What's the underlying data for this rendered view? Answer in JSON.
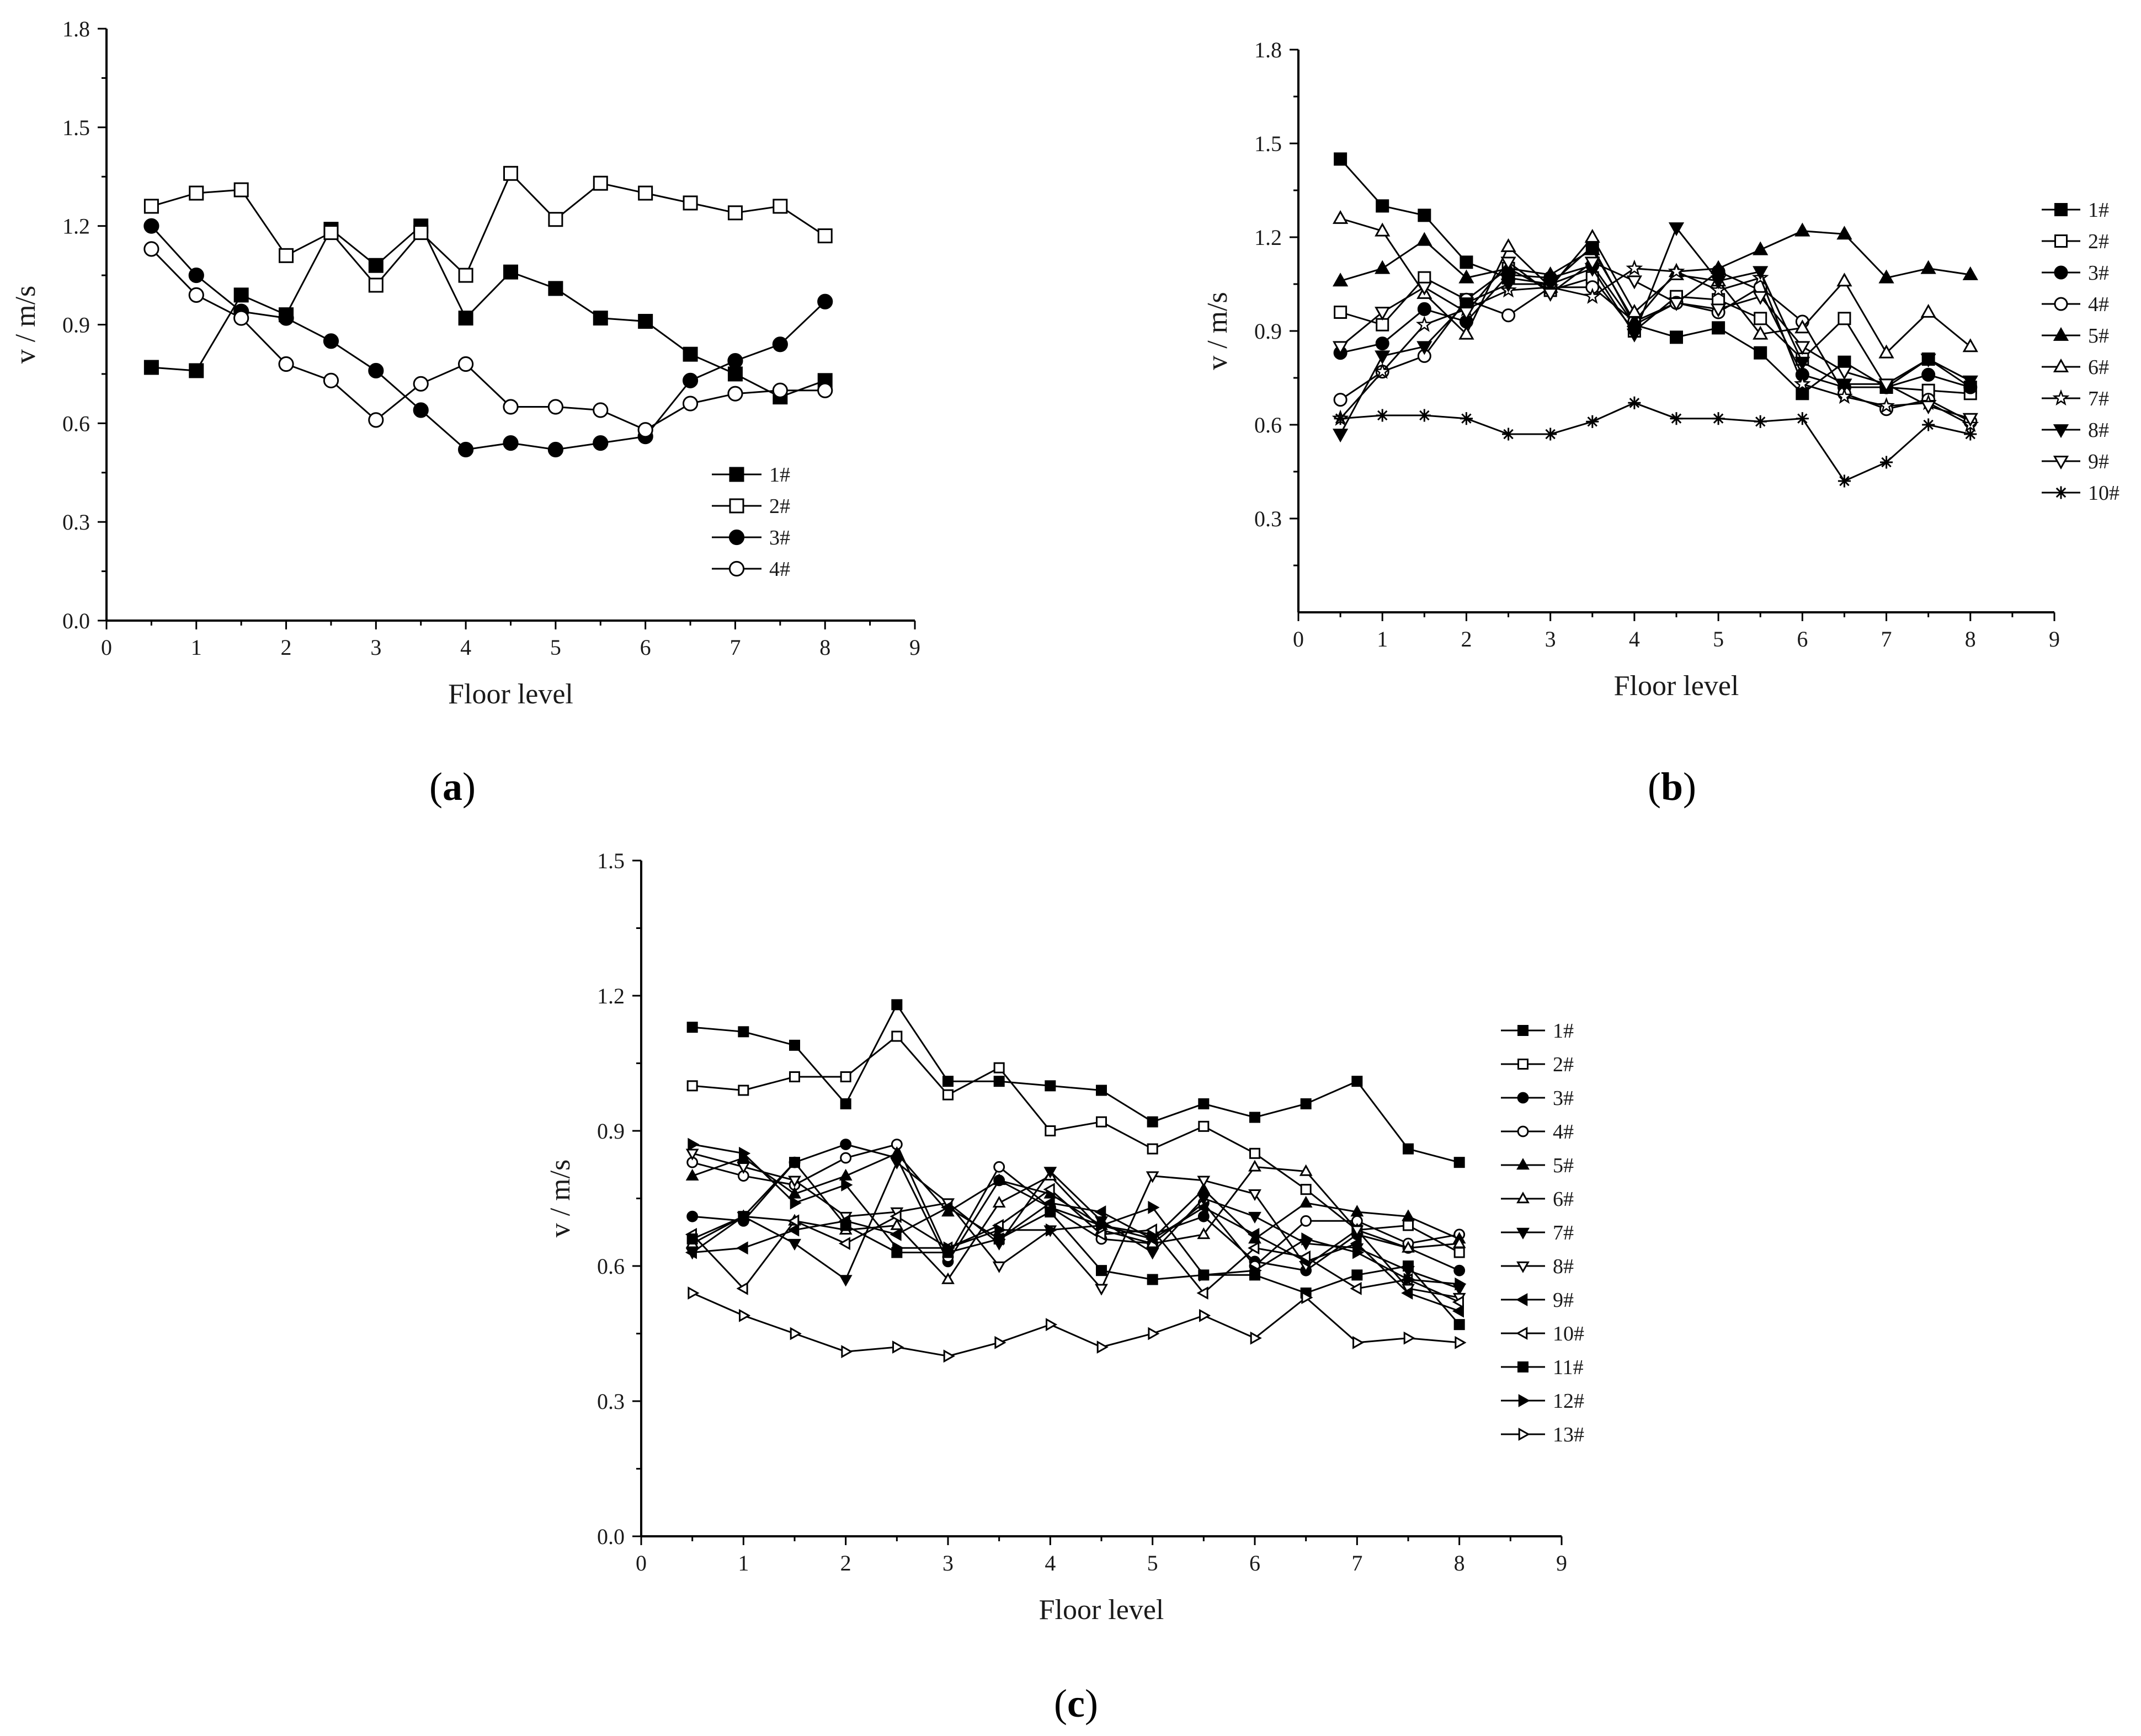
{
  "figure": {
    "panels": [
      {
        "label_open": "(",
        "label_letter": "a",
        "label_close": ")"
      },
      {
        "label_open": "(",
        "label_letter": "b",
        "label_close": ")"
      },
      {
        "label_open": "(",
        "label_letter": "c",
        "label_close": ")"
      }
    ]
  },
  "chart_data": [
    {
      "type": "line",
      "panel": "a",
      "xlabel": "Floor level",
      "ylabel": "v / m/s",
      "xlim": [
        0,
        9
      ],
      "ylim": [
        0,
        1.8
      ],
      "xticks": [
        "0",
        "1",
        "2",
        "3",
        "4",
        "5",
        "6",
        "7",
        "8",
        "9"
      ],
      "yticks": [
        "0.0",
        "0.3",
        "0.6",
        "0.9",
        "1.2",
        "1.5",
        "1.8"
      ],
      "legend_position": "lower-right",
      "x": [
        0.5,
        1,
        1.5,
        2,
        2.5,
        3,
        3.5,
        4,
        4.5,
        5,
        5.5,
        6,
        6.5,
        7,
        7.5,
        8
      ],
      "series": [
        {
          "name": "1#",
          "marker": "square-filled",
          "values": [
            0.77,
            0.76,
            0.99,
            0.93,
            1.19,
            1.08,
            1.2,
            0.92,
            1.06,
            1.01,
            0.92,
            0.91,
            0.81,
            0.75,
            0.68,
            0.73
          ]
        },
        {
          "name": "2#",
          "marker": "square-open",
          "values": [
            1.26,
            1.3,
            1.31,
            1.11,
            1.18,
            1.02,
            1.18,
            1.05,
            1.36,
            1.22,
            1.33,
            1.3,
            1.27,
            1.24,
            1.26,
            1.17
          ]
        },
        {
          "name": "3#",
          "marker": "circle-filled",
          "values": [
            1.2,
            1.05,
            0.94,
            0.92,
            0.85,
            0.76,
            0.64,
            0.52,
            0.54,
            0.52,
            0.54,
            0.56,
            0.73,
            0.79,
            0.84,
            0.97
          ]
        },
        {
          "name": "4#",
          "marker": "circle-open",
          "values": [
            1.13,
            0.99,
            0.92,
            0.78,
            0.73,
            0.61,
            0.72,
            0.78,
            0.65,
            0.65,
            0.64,
            0.58,
            0.66,
            0.69,
            0.7,
            0.7
          ]
        }
      ]
    },
    {
      "type": "line",
      "panel": "b",
      "xlabel": "Floor level",
      "ylabel": "v / m/s",
      "xlim": [
        0,
        9
      ],
      "ylim": [
        0,
        1.8
      ],
      "xticks": [
        "0",
        "1",
        "2",
        "3",
        "4",
        "5",
        "6",
        "7",
        "8",
        "9"
      ],
      "yticks": [
        "0.3",
        "0.6",
        "0.9",
        "1.2",
        "1.5",
        "1.8"
      ],
      "legend_position": "right",
      "x": [
        0.5,
        1,
        1.5,
        2,
        2.5,
        3,
        3.5,
        4,
        4.5,
        5,
        5.5,
        6,
        6.5,
        7,
        7.5,
        8
      ],
      "series": [
        {
          "name": "1#",
          "marker": "square-filled",
          "values": [
            1.45,
            1.3,
            1.27,
            1.12,
            1.07,
            1.05,
            1.17,
            0.92,
            0.88,
            0.91,
            0.83,
            0.7,
            0.8,
            0.72,
            0.81,
            0.72
          ]
        },
        {
          "name": "2#",
          "marker": "square-open",
          "values": [
            0.96,
            0.92,
            1.07,
            1.0,
            1.1,
            1.03,
            1.07,
            0.9,
            1.01,
            1.0,
            0.94,
            0.81,
            0.94,
            0.72,
            0.71,
            0.7
          ]
        },
        {
          "name": "3#",
          "marker": "circle-filled",
          "values": [
            0.83,
            0.86,
            0.97,
            0.93,
            1.08,
            1.07,
            1.11,
            0.92,
            0.99,
            1.09,
            1.03,
            0.76,
            0.72,
            0.72,
            0.76,
            0.72
          ]
        },
        {
          "name": "4#",
          "marker": "circle-open",
          "values": [
            0.68,
            0.77,
            0.82,
            1.0,
            0.95,
            1.04,
            1.04,
            0.93,
            0.99,
            0.96,
            1.04,
            0.93,
            0.7,
            0.65,
            0.68,
            0.61
          ]
        },
        {
          "name": "5#",
          "marker": "triangle-up-filled",
          "values": [
            1.06,
            1.1,
            1.19,
            1.07,
            1.1,
            1.08,
            1.16,
            0.93,
            1.09,
            1.1,
            1.16,
            1.22,
            1.21,
            1.07,
            1.1,
            1.08
          ]
        },
        {
          "name": "6#",
          "marker": "triangle-up-open",
          "values": [
            1.26,
            1.22,
            1.02,
            0.89,
            1.17,
            1.04,
            1.2,
            0.96,
            1.08,
            1.06,
            0.89,
            0.91,
            1.06,
            0.83,
            0.96,
            0.85
          ]
        },
        {
          "name": "7#",
          "marker": "star-open",
          "values": [
            0.62,
            0.77,
            0.92,
            0.97,
            1.03,
            1.04,
            1.01,
            1.1,
            1.09,
            1.03,
            1.07,
            0.73,
            0.69,
            0.66,
            0.67,
            0.6
          ]
        },
        {
          "name": "8#",
          "marker": "triangle-down-filled",
          "values": [
            0.57,
            0.82,
            0.85,
            0.99,
            1.05,
            1.05,
            1.1,
            0.89,
            1.23,
            1.06,
            1.09,
            0.8,
            0.73,
            0.73,
            0.81,
            0.74
          ]
        },
        {
          "name": "9#",
          "marker": "triangle-down-open",
          "values": [
            0.85,
            0.96,
            1.04,
            0.96,
            1.12,
            1.02,
            1.12,
            1.06,
            0.99,
            0.97,
            1.01,
            0.85,
            0.77,
            0.73,
            0.66,
            0.62
          ]
        },
        {
          "name": "10#",
          "marker": "asterisk",
          "values": [
            0.62,
            0.63,
            0.63,
            0.62,
            0.57,
            0.57,
            0.61,
            0.67,
            0.62,
            0.62,
            0.61,
            0.62,
            0.42,
            0.48,
            0.6,
            0.57
          ]
        }
      ]
    },
    {
      "type": "line",
      "panel": "c",
      "xlabel": "Floor level",
      "ylabel": "v / m/s",
      "xlim": [
        0,
        9
      ],
      "ylim": [
        0,
        1.5
      ],
      "xticks": [
        "0",
        "1",
        "2",
        "3",
        "4",
        "5",
        "6",
        "7",
        "8",
        "9"
      ],
      "yticks": [
        "0.0",
        "0.3",
        "0.6",
        "0.9",
        "1.2",
        "1.5"
      ],
      "legend_position": "right",
      "x": [
        0.5,
        1,
        1.5,
        2,
        2.5,
        3,
        3.5,
        4,
        4.5,
        5,
        5.5,
        6,
        6.5,
        7,
        7.5,
        8
      ],
      "series": [
        {
          "name": "1#",
          "marker": "square-filled",
          "values": [
            1.13,
            1.12,
            1.09,
            0.96,
            1.18,
            1.01,
            1.01,
            1.0,
            0.99,
            0.92,
            0.96,
            0.93,
            0.96,
            1.01,
            0.86,
            0.83
          ]
        },
        {
          "name": "2#",
          "marker": "square-open",
          "values": [
            1.0,
            0.99,
            1.02,
            1.02,
            1.11,
            0.98,
            1.04,
            0.9,
            0.92,
            0.86,
            0.91,
            0.85,
            0.77,
            0.68,
            0.69,
            0.63
          ]
        },
        {
          "name": "3#",
          "marker": "circle-filled",
          "values": [
            0.71,
            0.7,
            0.83,
            0.87,
            0.84,
            0.61,
            0.79,
            0.73,
            0.69,
            0.67,
            0.71,
            0.61,
            0.59,
            0.67,
            0.64,
            0.59
          ]
        },
        {
          "name": "4#",
          "marker": "circle-open",
          "values": [
            0.83,
            0.8,
            0.78,
            0.84,
            0.87,
            0.62,
            0.82,
            0.73,
            0.66,
            0.65,
            0.74,
            0.6,
            0.7,
            0.7,
            0.65,
            0.67
          ]
        },
        {
          "name": "5#",
          "marker": "triangle-up-filled",
          "values": [
            0.8,
            0.84,
            0.76,
            0.8,
            0.85,
            0.72,
            0.79,
            0.76,
            0.69,
            0.66,
            0.77,
            0.66,
            0.74,
            0.72,
            0.71,
            0.66
          ]
        },
        {
          "name": "6#",
          "marker": "triangle-up-open",
          "values": [
            0.65,
            0.71,
            0.7,
            0.68,
            0.69,
            0.57,
            0.74,
            0.8,
            0.68,
            0.65,
            0.67,
            0.82,
            0.81,
            0.68,
            0.64,
            0.65
          ]
        },
        {
          "name": "7#",
          "marker": "triangle-down-filled",
          "values": [
            0.63,
            0.71,
            0.65,
            0.57,
            0.83,
            0.74,
            0.65,
            0.81,
            0.7,
            0.63,
            0.75,
            0.71,
            0.65,
            0.64,
            0.59,
            0.55
          ]
        },
        {
          "name": "8#",
          "marker": "triangle-down-open",
          "values": [
            0.85,
            0.82,
            0.79,
            0.71,
            0.72,
            0.74,
            0.6,
            0.68,
            0.55,
            0.8,
            0.79,
            0.76,
            0.6,
            0.68,
            0.55,
            0.53
          ]
        },
        {
          "name": "9#",
          "marker": "triangle-left-filled",
          "values": [
            0.63,
            0.64,
            0.68,
            0.7,
            0.67,
            0.73,
            0.66,
            0.74,
            0.72,
            0.66,
            0.73,
            0.67,
            0.61,
            0.65,
            0.54,
            0.5
          ]
        },
        {
          "name": "10#",
          "marker": "triangle-left-open",
          "values": [
            0.67,
            0.55,
            0.7,
            0.65,
            0.71,
            0.64,
            0.69,
            0.77,
            0.67,
            0.68,
            0.54,
            0.64,
            0.62,
            0.55,
            0.57,
            0.52
          ]
        },
        {
          "name": "11#",
          "marker": "square-filled",
          "values": [
            0.66,
            0.71,
            0.83,
            0.69,
            0.63,
            0.63,
            0.66,
            0.72,
            0.59,
            0.57,
            0.58,
            0.58,
            0.54,
            0.58,
            0.6,
            0.47
          ]
        },
        {
          "name": "12#",
          "marker": "triangle-right-filled",
          "values": [
            0.87,
            0.85,
            0.74,
            0.78,
            0.64,
            0.64,
            0.68,
            0.68,
            0.69,
            0.73,
            0.58,
            0.59,
            0.66,
            0.63,
            0.57,
            0.56
          ]
        },
        {
          "name": "13#",
          "marker": "triangle-right-open",
          "values": [
            0.54,
            0.49,
            0.45,
            0.41,
            0.42,
            0.4,
            0.43,
            0.47,
            0.42,
            0.45,
            0.49,
            0.44,
            0.53,
            0.43,
            0.44,
            0.43
          ]
        }
      ]
    }
  ]
}
